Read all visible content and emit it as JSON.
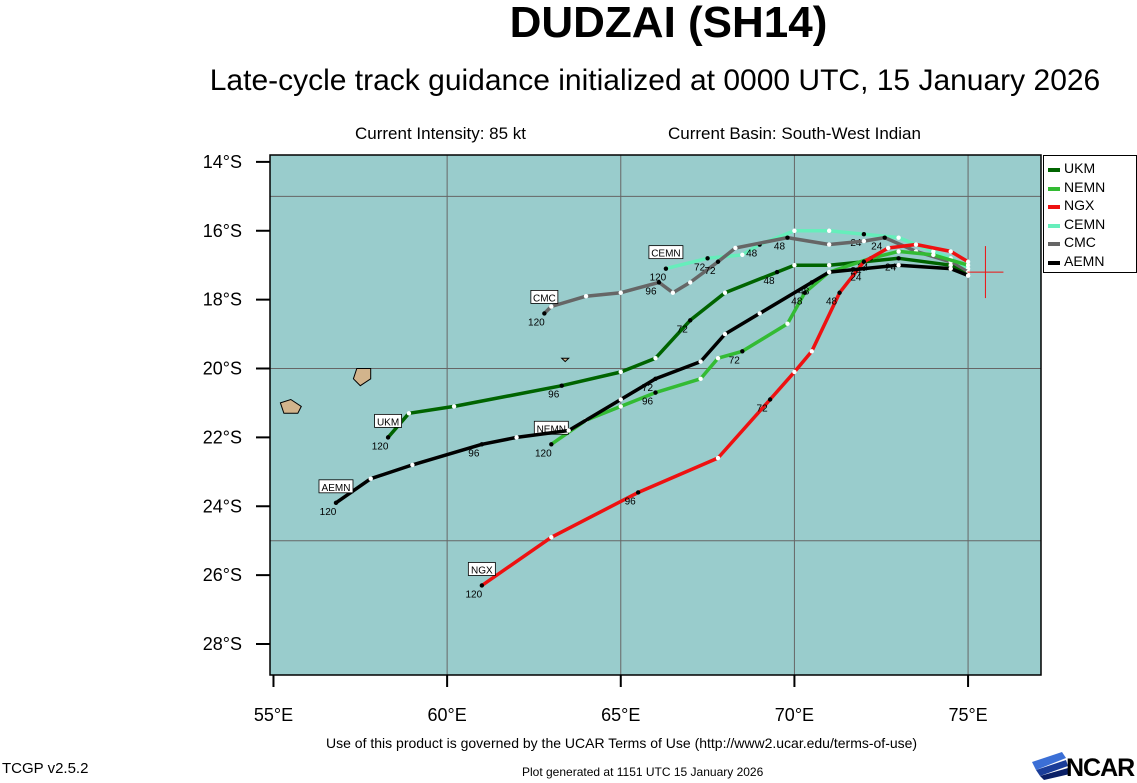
{
  "header": {
    "storm_name": "DUDZAI (SH14)",
    "subtitle": "Late-cycle track guidance initialized at 0000 UTC, 15 January 2026",
    "current_intensity": "Current Intensity: 85 kt",
    "current_basin": "Current Basin: South-West Indian"
  },
  "footer": {
    "terms": "Use of this product is governed by the UCAR Terms of Use (http://www2.ucar.edu/terms-of-use)",
    "version": "TCGP v2.5.2",
    "generated": "Plot generated at 1151 UTC   15 January 2026",
    "logo_text": "NCAR"
  },
  "map": {
    "ocean_color": "#99cccc",
    "land_color": "#d2b48c",
    "grid_color": "#666666",
    "lon_range": [
      54.9,
      77.1
    ],
    "lat_range": [
      -28.9,
      -13.8
    ],
    "lon_ticks": [
      55,
      60,
      65,
      70,
      75
    ],
    "lon_tick_labels": [
      "55°E",
      "60°E",
      "65°E",
      "70°E",
      "75°E"
    ],
    "lat_ticks": [
      -14,
      -16,
      -18,
      -20,
      -22,
      -24,
      -26,
      -28
    ],
    "lat_tick_labels": [
      "14°S",
      "16°S",
      "18°S",
      "20°S",
      "22°S",
      "24°S",
      "26°S",
      "28°S"
    ],
    "grid_lons": [
      60,
      65,
      70,
      75
    ],
    "grid_lats": [
      -15,
      -20,
      -25
    ],
    "current_position": {
      "lon": 75.5,
      "lat": -17.2
    }
  },
  "legend": [
    {
      "name": "UKM",
      "color": "#006400"
    },
    {
      "name": "NEMN",
      "color": "#33bb33"
    },
    {
      "name": "NGX",
      "color": "#ee1111"
    },
    {
      "name": "CEMN",
      "color": "#66eebb"
    },
    {
      "name": "CMC",
      "color": "#666666"
    },
    {
      "name": "AEMN",
      "color": "#000000"
    }
  ],
  "tracks": [
    {
      "name": "CEMN",
      "color": "#66eebb",
      "label_pos": "above",
      "points": [
        [
          75.0,
          -17.1
        ],
        [
          74.5,
          -16.8
        ],
        [
          74.0,
          -16.6
        ],
        [
          73.0,
          -16.2
        ],
        [
          72.0,
          -16.1
        ],
        [
          71.0,
          -16.0
        ],
        [
          70.0,
          -16.0
        ],
        [
          69.0,
          -16.4
        ],
        [
          68.5,
          -16.7
        ],
        [
          67.5,
          -16.8
        ],
        [
          66.3,
          -17.1
        ]
      ],
      "hour_labels": [
        {
          "i": 4,
          "t": "24"
        },
        {
          "i": 7,
          "t": "48"
        },
        {
          "i": 9,
          "t": "72"
        },
        {
          "i": 10,
          "t": "120"
        }
      ]
    },
    {
      "name": "CMC",
      "color": "#666666",
      "label_pos": "above",
      "points": [
        [
          75.0,
          -17.2
        ],
        [
          74.5,
          -16.9
        ],
        [
          73.5,
          -16.6
        ],
        [
          72.6,
          -16.2
        ],
        [
          72.0,
          -16.3
        ],
        [
          71.0,
          -16.4
        ],
        [
          69.8,
          -16.2
        ],
        [
          68.3,
          -16.5
        ],
        [
          67.8,
          -16.9
        ],
        [
          67.0,
          -17.5
        ],
        [
          66.5,
          -17.8
        ],
        [
          66.1,
          -17.5
        ],
        [
          65.0,
          -17.8
        ],
        [
          64.0,
          -17.9
        ],
        [
          63.0,
          -18.2
        ],
        [
          62.8,
          -18.4
        ]
      ],
      "hour_labels": [
        {
          "i": 3,
          "t": "24"
        },
        {
          "i": 6,
          "t": "48"
        },
        {
          "i": 8,
          "t": "72"
        },
        {
          "i": 11,
          "t": "96"
        },
        {
          "i": 15,
          "t": "120"
        }
      ]
    },
    {
      "name": "UKM",
      "color": "#006400",
      "label_pos": "above",
      "points": [
        [
          75.0,
          -17.3
        ],
        [
          74.5,
          -17.0
        ],
        [
          73.0,
          -16.8
        ],
        [
          72.0,
          -16.9
        ],
        [
          71.0,
          -17.0
        ],
        [
          70.0,
          -17.0
        ],
        [
          69.5,
          -17.2
        ],
        [
          68.0,
          -17.8
        ],
        [
          67.0,
          -18.6
        ],
        [
          66.0,
          -19.7
        ],
        [
          65.0,
          -20.1
        ],
        [
          63.3,
          -20.5
        ],
        [
          60.2,
          -21.1
        ],
        [
          58.9,
          -21.3
        ],
        [
          58.3,
          -22.0
        ]
      ],
      "hour_labels": [
        {
          "i": 2,
          "t": "24"
        },
        {
          "i": 6,
          "t": "48"
        },
        {
          "i": 8,
          "t": "72"
        },
        {
          "i": 11,
          "t": "96"
        },
        {
          "i": 14,
          "t": "120"
        }
      ]
    },
    {
      "name": "NEMN",
      "color": "#33bb33",
      "label_pos": "above",
      "points": [
        [
          75.0,
          -17.0
        ],
        [
          74.0,
          -16.7
        ],
        [
          73.0,
          -16.6
        ],
        [
          72.2,
          -16.8
        ],
        [
          71.0,
          -17.2
        ],
        [
          70.3,
          -17.8
        ],
        [
          69.8,
          -18.7
        ],
        [
          68.5,
          -19.5
        ],
        [
          67.8,
          -19.7
        ],
        [
          67.3,
          -20.3
        ],
        [
          66.0,
          -20.7
        ],
        [
          65.0,
          -21.1
        ],
        [
          64.0,
          -21.5
        ],
        [
          63.0,
          -22.2
        ]
      ],
      "hour_labels": [
        {
          "i": 3,
          "t": "24"
        },
        {
          "i": 5,
          "t": "48"
        },
        {
          "i": 7,
          "t": "72"
        },
        {
          "i": 10,
          "t": "96"
        },
        {
          "i": 13,
          "t": "120"
        }
      ]
    },
    {
      "name": "NGX",
      "color": "#ee1111",
      "label_pos": "above",
      "points": [
        [
          75.0,
          -16.9
        ],
        [
          74.5,
          -16.6
        ],
        [
          73.5,
          -16.4
        ],
        [
          72.7,
          -16.5
        ],
        [
          72.0,
          -16.9
        ],
        [
          71.3,
          -17.8
        ],
        [
          70.5,
          -19.5
        ],
        [
          70.0,
          -20.1
        ],
        [
          69.3,
          -20.9
        ],
        [
          67.8,
          -22.6
        ],
        [
          65.5,
          -23.6
        ],
        [
          63.0,
          -24.9
        ],
        [
          61.0,
          -26.3
        ]
      ],
      "hour_labels": [
        {
          "i": 4,
          "t": "24"
        },
        {
          "i": 5,
          "t": "48"
        },
        {
          "i": 8,
          "t": "72"
        },
        {
          "i": 10,
          "t": "96"
        },
        {
          "i": 12,
          "t": "120"
        }
      ]
    },
    {
      "name": "AEMN",
      "color": "#000000",
      "label_pos": "above",
      "points": [
        [
          75.0,
          -17.3
        ],
        [
          74.5,
          -17.1
        ],
        [
          73.0,
          -17.0
        ],
        [
          72.0,
          -17.1
        ],
        [
          71.0,
          -17.2
        ],
        [
          70.5,
          -17.5
        ],
        [
          69.0,
          -18.4
        ],
        [
          68.0,
          -19.0
        ],
        [
          67.3,
          -19.8
        ],
        [
          66.0,
          -20.3
        ],
        [
          65.0,
          -20.9
        ],
        [
          63.5,
          -21.8
        ],
        [
          62.0,
          -22.0
        ],
        [
          61.0,
          -22.2
        ],
        [
          59.0,
          -22.8
        ],
        [
          57.8,
          -23.2
        ],
        [
          56.8,
          -23.9
        ]
      ],
      "hour_labels": [
        {
          "i": 3,
          "t": "24"
        },
        {
          "i": 5,
          "t": "48"
        },
        {
          "i": 9,
          "t": "72"
        },
        {
          "i": 13,
          "t": "96"
        },
        {
          "i": 16,
          "t": "120"
        }
      ]
    }
  ],
  "islands": [
    {
      "name": "reunion",
      "points": [
        [
          55.2,
          -21.0
        ],
        [
          55.5,
          -20.9
        ],
        [
          55.8,
          -21.1
        ],
        [
          55.7,
          -21.3
        ],
        [
          55.3,
          -21.3
        ]
      ]
    },
    {
      "name": "mauritius",
      "points": [
        [
          57.4,
          -20.0
        ],
        [
          57.8,
          -20.0
        ],
        [
          57.8,
          -20.3
        ],
        [
          57.5,
          -20.5
        ],
        [
          57.3,
          -20.3
        ]
      ]
    },
    {
      "name": "rodrigues",
      "points": [
        [
          63.3,
          -19.7
        ],
        [
          63.5,
          -19.7
        ],
        [
          63.4,
          -19.8
        ]
      ]
    }
  ]
}
